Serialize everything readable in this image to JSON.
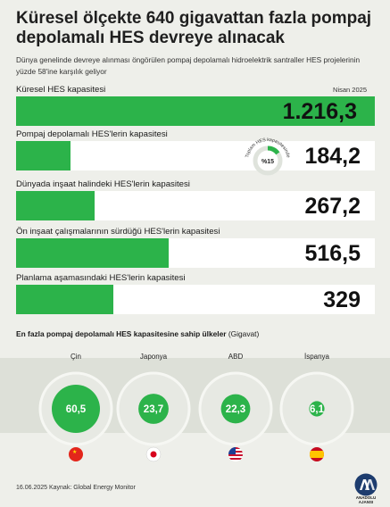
{
  "header": {
    "title": "Küresel ölçekte 640 gigavattan fazla pompaj depolamalı HES devreye alınacak",
    "subtitle": "Dünya genelinde devreye alınması öngörülen pompaj depolamalı hidroelektrik santraller HES projelerinin yüzde 58'ine karşılık geliyor",
    "date_note": "Nisan 2025",
    "unit_note": "gigavat"
  },
  "chart_data": [
    {
      "type": "bar",
      "orientation": "horizontal",
      "categories": [
        "Küresel HES kapasitesi",
        "Pompaj depolamalı HES'lerin kapasitesi",
        "Dünyada inşaat halindeki HES'lerin kapasitesi",
        "Ön inşaat çalışmalarının sürdüğü HES'lerin kapasitesi",
        "Planlama aşamasındaki HES'lerin kapasitesi"
      ],
      "values": [
        1216.3,
        184.2,
        267.2,
        516.5,
        329
      ],
      "labels": [
        "1.216,3",
        "184,2",
        "267,2",
        "516,5",
        "329"
      ],
      "xlim": [
        0,
        1216.3
      ],
      "color": "#2cb34a"
    },
    {
      "type": "pie",
      "title": "Toplam HES kapasitesinde",
      "label": "%15",
      "values": [
        15,
        85
      ],
      "colors": [
        "#2cb34a",
        "#dfe3dc"
      ]
    },
    {
      "type": "bubble",
      "title": "En fazla pompaj depolamalı HES kapasitesine sahip ülkeler",
      "unit": "(Gigavat)",
      "categories": [
        "Çin",
        "Japonya",
        "ABD",
        "İspanya"
      ],
      "values": [
        60.5,
        23.7,
        22.3,
        6.1
      ],
      "labels": [
        "60,5",
        "23,7",
        "22,3",
        "6,1"
      ],
      "color": "#2cb34a"
    }
  ],
  "footer": {
    "text": "16.06.2025  Kaynak: Global Energy Monitor"
  },
  "logo": {
    "icon": "aa-logo-icon",
    "text": "ANADOLU AJANSI"
  }
}
